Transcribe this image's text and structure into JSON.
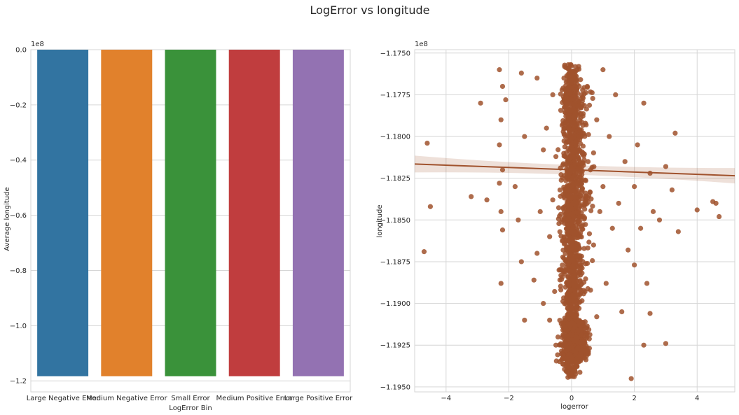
{
  "figure": {
    "suptitle": "LogError vs longitude"
  },
  "chart_data": [
    {
      "type": "bar",
      "xlabel": "LogError Bin",
      "ylabel": "Average longitude",
      "offset_text": "1e8",
      "ylim": [
        -1.24,
        0.0
      ],
      "grid": true,
      "categories": [
        "Large Negative Error",
        "Medium Negative Error",
        "Small Error",
        "Medium Positive Error",
        "Large Positive Error"
      ],
      "values": [
        -1.183,
        -1.183,
        -1.183,
        -1.183,
        -1.183
      ],
      "colors": [
        "#3274a1",
        "#e1812c",
        "#3a923a",
        "#c03d3e",
        "#9372b2"
      ],
      "yticks": [
        0.0,
        -0.2,
        -0.4,
        -0.6,
        -0.8,
        -1.0,
        -1.2
      ],
      "ytick_labels": [
        "0.0",
        "−0.2",
        "−0.4",
        "−0.6",
        "−0.8",
        "−1.0",
        "−1.2"
      ]
    },
    {
      "type": "scatter",
      "xlabel": "logerror",
      "ylabel": "longitude",
      "offset_text": "1e8",
      "xlim": [
        -5.0,
        5.2
      ],
      "ylim": [
        -1.1953,
        -1.1748
      ],
      "grid": true,
      "marker_color": "#a0522d",
      "xticks": [
        -4,
        -2,
        0,
        2,
        4
      ],
      "xtick_labels": [
        "−4",
        "−2",
        "0",
        "2",
        "4"
      ],
      "yticks": [
        -1.175,
        -1.1775,
        -1.18,
        -1.1825,
        -1.185,
        -1.1875,
        -1.19,
        -1.1925,
        -1.195
      ],
      "ytick_labels": [
        "−1.1750",
        "−1.1775",
        "−1.1800",
        "−1.1825",
        "−1.1850",
        "−1.1875",
        "−1.1900",
        "−1.1925",
        "−1.1950"
      ],
      "regression_line": {
        "x": [
          -5.0,
          5.2
        ],
        "y": [
          -1.18165,
          -1.18235
        ]
      },
      "points": [
        {
          "x": -4.6,
          "y": -1.1804
        },
        {
          "x": -4.5,
          "y": -1.1842
        },
        {
          "x": -4.7,
          "y": -1.1869
        },
        {
          "x": -3.2,
          "y": -1.1836
        },
        {
          "x": -2.9,
          "y": -1.178
        },
        {
          "x": -2.7,
          "y": -1.1838
        },
        {
          "x": -2.3,
          "y": -1.176
        },
        {
          "x": -2.2,
          "y": -1.177
        },
        {
          "x": -2.25,
          "y": -1.179
        },
        {
          "x": -2.3,
          "y": -1.1805
        },
        {
          "x": -2.2,
          "y": -1.182
        },
        {
          "x": -2.25,
          "y": -1.1845
        },
        {
          "x": -2.2,
          "y": -1.1856
        },
        {
          "x": -2.25,
          "y": -1.1888
        },
        {
          "x": -2.3,
          "y": -1.1828
        },
        {
          "x": -2.1,
          "y": -1.1778
        },
        {
          "x": -1.6,
          "y": -1.1762
        },
        {
          "x": -1.6,
          "y": -1.1875
        },
        {
          "x": -1.5,
          "y": -1.191
        },
        {
          "x": -1.5,
          "y": -1.18
        },
        {
          "x": -1.7,
          "y": -1.185
        },
        {
          "x": -1.8,
          "y": -1.183
        },
        {
          "x": -1.2,
          "y": -1.1886
        },
        {
          "x": -1.1,
          "y": -1.187
        },
        {
          "x": -1.1,
          "y": -1.1765
        },
        {
          "x": -0.9,
          "y": -1.1808
        },
        {
          "x": -1.0,
          "y": -1.1845
        },
        {
          "x": -0.9,
          "y": -1.19
        },
        {
          "x": -0.8,
          "y": -1.1795
        },
        {
          "x": -0.7,
          "y": -1.191
        },
        {
          "x": -0.7,
          "y": -1.186
        },
        {
          "x": -0.6,
          "y": -1.1775
        },
        {
          "x": -0.5,
          "y": -1.1925
        },
        {
          "x": -0.5,
          "y": -1.1812
        },
        {
          "x": -0.4,
          "y": -1.188
        },
        {
          "x": -0.6,
          "y": -1.1838
        },
        {
          "x": 0.5,
          "y": -1.177
        },
        {
          "x": 0.6,
          "y": -1.182
        },
        {
          "x": 0.7,
          "y": -1.1865
        },
        {
          "x": 0.8,
          "y": -1.179
        },
        {
          "x": 0.8,
          "y": -1.1908
        },
        {
          "x": 0.9,
          "y": -1.1845
        },
        {
          "x": 1.0,
          "y": -1.176
        },
        {
          "x": 1.0,
          "y": -1.183
        },
        {
          "x": 1.1,
          "y": -1.1888
        },
        {
          "x": 1.2,
          "y": -1.18
        },
        {
          "x": 1.3,
          "y": -1.1855
        },
        {
          "x": 1.4,
          "y": -1.1775
        },
        {
          "x": 1.5,
          "y": -1.184
        },
        {
          "x": 1.6,
          "y": -1.1905
        },
        {
          "x": 1.7,
          "y": -1.1815
        },
        {
          "x": 1.8,
          "y": -1.1868
        },
        {
          "x": 1.9,
          "y": -1.1945
        },
        {
          "x": 2.0,
          "y": -1.1877
        },
        {
          "x": 2.0,
          "y": -1.183
        },
        {
          "x": 2.1,
          "y": -1.1805
        },
        {
          "x": 2.2,
          "y": -1.1855
        },
        {
          "x": 2.3,
          "y": -1.1925
        },
        {
          "x": 2.3,
          "y": -1.178
        },
        {
          "x": 2.4,
          "y": -1.1888
        },
        {
          "x": 2.5,
          "y": -1.1906
        },
        {
          "x": 2.5,
          "y": -1.1822
        },
        {
          "x": 2.6,
          "y": -1.1845
        },
        {
          "x": 2.8,
          "y": -1.185
        },
        {
          "x": 3.0,
          "y": -1.1924
        },
        {
          "x": 3.0,
          "y": -1.1818
        },
        {
          "x": 3.2,
          "y": -1.1832
        },
        {
          "x": 3.3,
          "y": -1.1798
        },
        {
          "x": 3.4,
          "y": -1.1857
        },
        {
          "x": 4.0,
          "y": -1.1844
        },
        {
          "x": 4.5,
          "y": -1.1839
        },
        {
          "x": 4.6,
          "y": -1.184
        },
        {
          "x": 4.7,
          "y": -1.1848
        }
      ],
      "dense_band": [
        {
          "y_top": -1.1757,
          "y_bottom": -1.1945,
          "x_min": -0.35,
          "x_max": 0.35
        },
        {
          "y_top": -1.177,
          "y_bottom": -1.19,
          "x_min": -0.6,
          "x_max": 0.8
        },
        {
          "y_top": -1.191,
          "y_bottom": -1.1935,
          "x_min": -0.55,
          "x_max": 0.75
        }
      ]
    }
  ]
}
